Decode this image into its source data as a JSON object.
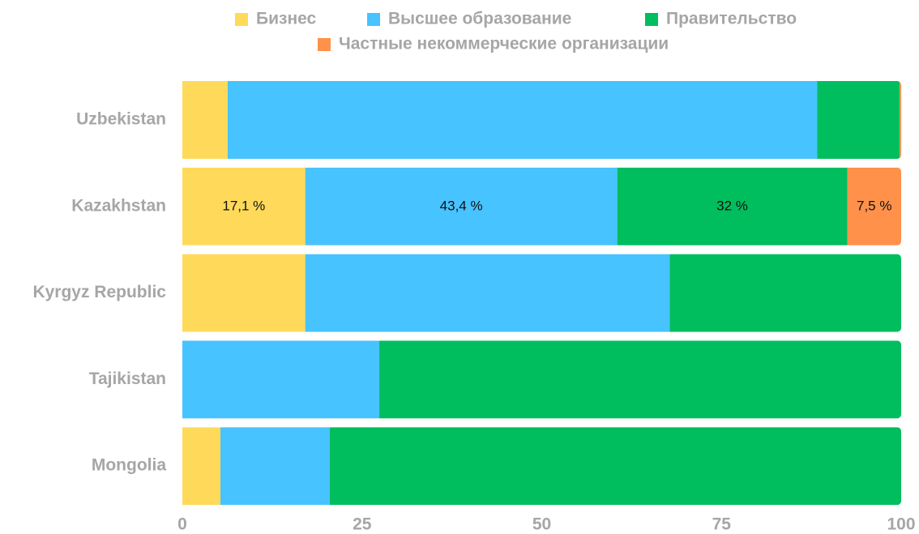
{
  "chart_data": {
    "type": "stacked-bar-horizontal",
    "categories": [
      "Uzbekistan",
      "Kazakhstan",
      "Kyrgyz Republic",
      "Tajikistan",
      "Mongolia"
    ],
    "series": [
      {
        "name": "Бизнес",
        "color": "#ffda5a",
        "values": [
          6.3,
          17.1,
          17.1,
          0,
          5.3
        ],
        "value_labels": [
          null,
          "17,1 %",
          null,
          null,
          null
        ]
      },
      {
        "name": "Высшее образование",
        "color": "#47c3ff",
        "values": [
          82.0,
          43.4,
          50.7,
          27.4,
          15.2
        ],
        "value_labels": [
          null,
          "43,4 %",
          null,
          null,
          null
        ]
      },
      {
        "name": "Правительство",
        "color": "#00be5e",
        "values": [
          11.5,
          32,
          32.2,
          72.6,
          79.5
        ],
        "value_labels": [
          null,
          "32 %",
          null,
          null,
          null
        ]
      },
      {
        "name": "Частные некоммерческие организации",
        "color": "#ff914a",
        "values": [
          0.2,
          7.5,
          0,
          0,
          0
        ],
        "value_labels": [
          null,
          "7,5 %",
          null,
          null,
          null
        ]
      }
    ],
    "xlim": [
      0,
      100
    ],
    "xticks": [
      0,
      25,
      50,
      75,
      100
    ],
    "grid": false,
    "legend": "top"
  }
}
